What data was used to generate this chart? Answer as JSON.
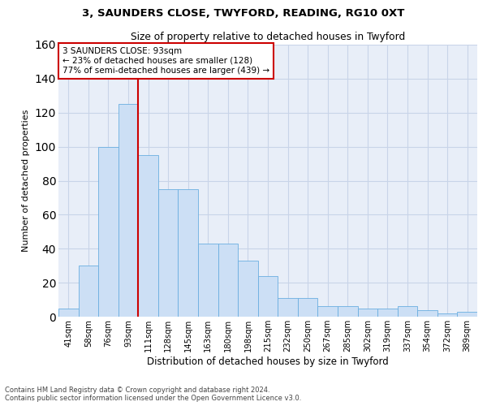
{
  "title1": "3, SAUNDERS CLOSE, TWYFORD, READING, RG10 0XT",
  "title2": "Size of property relative to detached houses in Twyford",
  "xlabel": "Distribution of detached houses by size in Twyford",
  "ylabel": "Number of detached properties",
  "footnote1": "Contains HM Land Registry data © Crown copyright and database right 2024.",
  "footnote2": "Contains public sector information licensed under the Open Government Licence v3.0.",
  "categories": [
    "41sqm",
    "58sqm",
    "76sqm",
    "93sqm",
    "111sqm",
    "128sqm",
    "145sqm",
    "163sqm",
    "180sqm",
    "198sqm",
    "215sqm",
    "232sqm",
    "250sqm",
    "267sqm",
    "285sqm",
    "302sqm",
    "319sqm",
    "337sqm",
    "354sqm",
    "372sqm",
    "389sqm"
  ],
  "values": [
    5,
    30,
    100,
    125,
    95,
    75,
    75,
    43,
    43,
    33,
    24,
    11,
    11,
    6,
    6,
    5,
    5,
    6,
    4,
    2,
    3
  ],
  "bar_color": "#ccdff5",
  "bar_edge_color": "#6aaee0",
  "grid_color": "#c8d4e8",
  "background_color": "#e8eef8",
  "vline_x_index": 3,
  "vline_color": "#cc0000",
  "annotation_line1": "3 SAUNDERS CLOSE: 93sqm",
  "annotation_line2": "← 23% of detached houses are smaller (128)",
  "annotation_line3": "77% of semi-detached houses are larger (439) →",
  "annotation_box_color": "white",
  "annotation_box_edge": "#cc0000",
  "ylim": [
    0,
    160
  ],
  "yticks": [
    0,
    20,
    40,
    60,
    80,
    100,
    120,
    140,
    160
  ]
}
